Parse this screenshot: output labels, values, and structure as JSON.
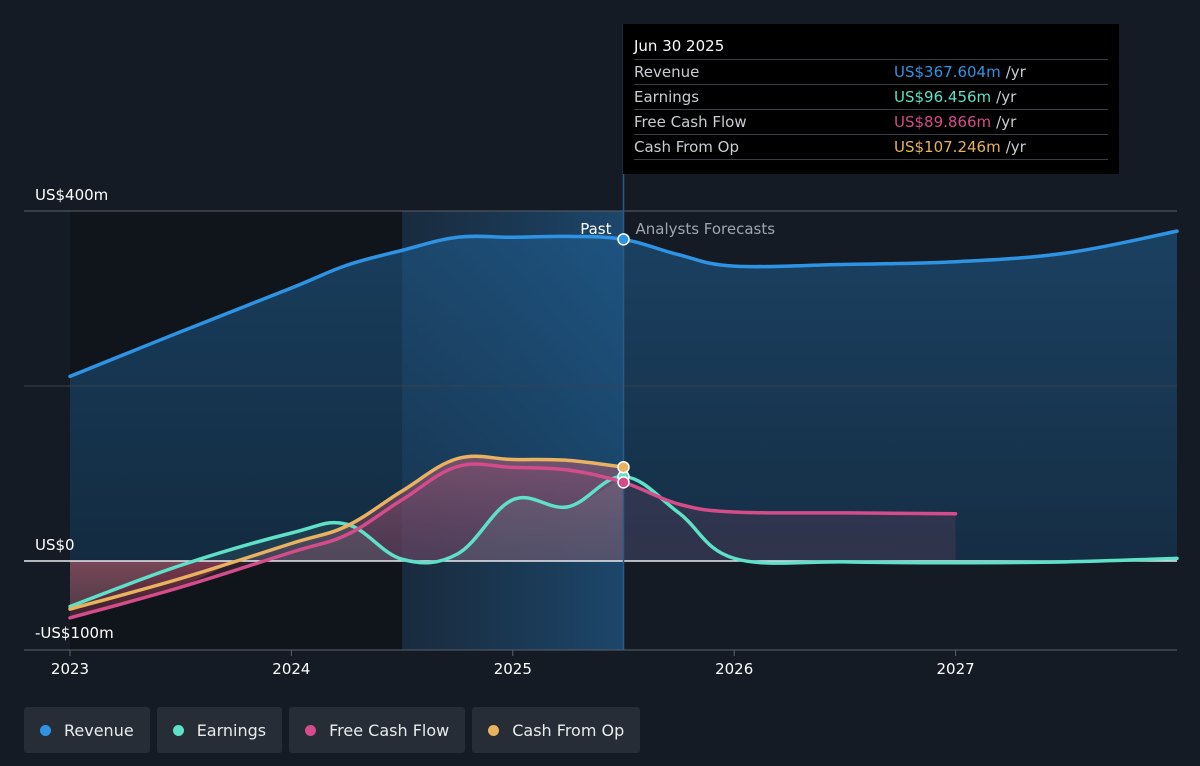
{
  "tooltip": {
    "date": "Jun 30 2025",
    "rows": [
      {
        "label": "Revenue",
        "value": "US$367.604m",
        "unit": "/yr",
        "color": "#2f93e4"
      },
      {
        "label": "Earnings",
        "value": "US$96.456m",
        "unit": "/yr",
        "color": "#5fe0c8"
      },
      {
        "label": "Free Cash Flow",
        "value": "US$89.866m",
        "unit": "/yr",
        "color": "#d44c8a"
      },
      {
        "label": "Cash From Op",
        "value": "US$107.246m",
        "unit": "/yr",
        "color": "#e8b260"
      }
    ]
  },
  "legend": [
    {
      "label": "Revenue",
      "color": "#2f93e4"
    },
    {
      "label": "Earnings",
      "color": "#5fe0c8"
    },
    {
      "label": "Free Cash Flow",
      "color": "#d44c8a"
    },
    {
      "label": "Cash From Op",
      "color": "#e8b260"
    }
  ],
  "chart_data": {
    "type": "line",
    "y_tick_labels": [
      "US$400m",
      "US$0",
      "-US$100m"
    ],
    "ylim": [
      -100,
      400
    ],
    "x_ticks": [
      "2023",
      "2024",
      "2025",
      "2026",
      "2027"
    ],
    "xlim": [
      2023.0,
      2028.0
    ],
    "past_label": "Past",
    "forecast_label": "Analysts Forecasts",
    "divider_x": 2025.5,
    "highlight_x_start": 2024.5,
    "series": [
      {
        "name": "Revenue",
        "color": "#2f93e4",
        "x": [
          2023.0,
          2023.5,
          2024.0,
          2024.25,
          2024.5,
          2024.75,
          2025.0,
          2025.25,
          2025.5,
          2025.75,
          2026.0,
          2026.5,
          2027.0,
          2027.5,
          2028.0
        ],
        "values": [
          211,
          262,
          312,
          338,
          355,
          370,
          370,
          371,
          367.6,
          350,
          337,
          339,
          342,
          352,
          377
        ]
      },
      {
        "name": "Earnings",
        "color": "#5fe0c8",
        "x": [
          2023.0,
          2023.5,
          2024.0,
          2024.25,
          2024.5,
          2024.75,
          2025.0,
          2025.25,
          2025.5,
          2025.75,
          2026.0,
          2026.5,
          2027.0,
          2027.5,
          2028.0
        ],
        "values": [
          -52,
          -5,
          32,
          42,
          2,
          8,
          70,
          62,
          96.5,
          55,
          3,
          -1,
          -2,
          -1,
          3
        ]
      },
      {
        "name": "Free Cash Flow",
        "color": "#d44c8a",
        "x": [
          2023.0,
          2023.5,
          2024.0,
          2024.25,
          2024.5,
          2024.75,
          2025.0,
          2025.25,
          2025.5,
          2025.75,
          2026.0,
          2026.5,
          2027.0
        ],
        "values": [
          -65,
          -30,
          10,
          30,
          70,
          108,
          107,
          104,
          89.9,
          65,
          56,
          55,
          54
        ]
      },
      {
        "name": "Cash From Op",
        "color": "#e8b260",
        "x": [
          2023.0,
          2023.5,
          2024.0,
          2024.25,
          2024.5,
          2024.75,
          2025.0,
          2025.25,
          2025.5
        ],
        "values": [
          -55,
          -20,
          20,
          40,
          80,
          117,
          116,
          115,
          107.2
        ]
      }
    ]
  }
}
